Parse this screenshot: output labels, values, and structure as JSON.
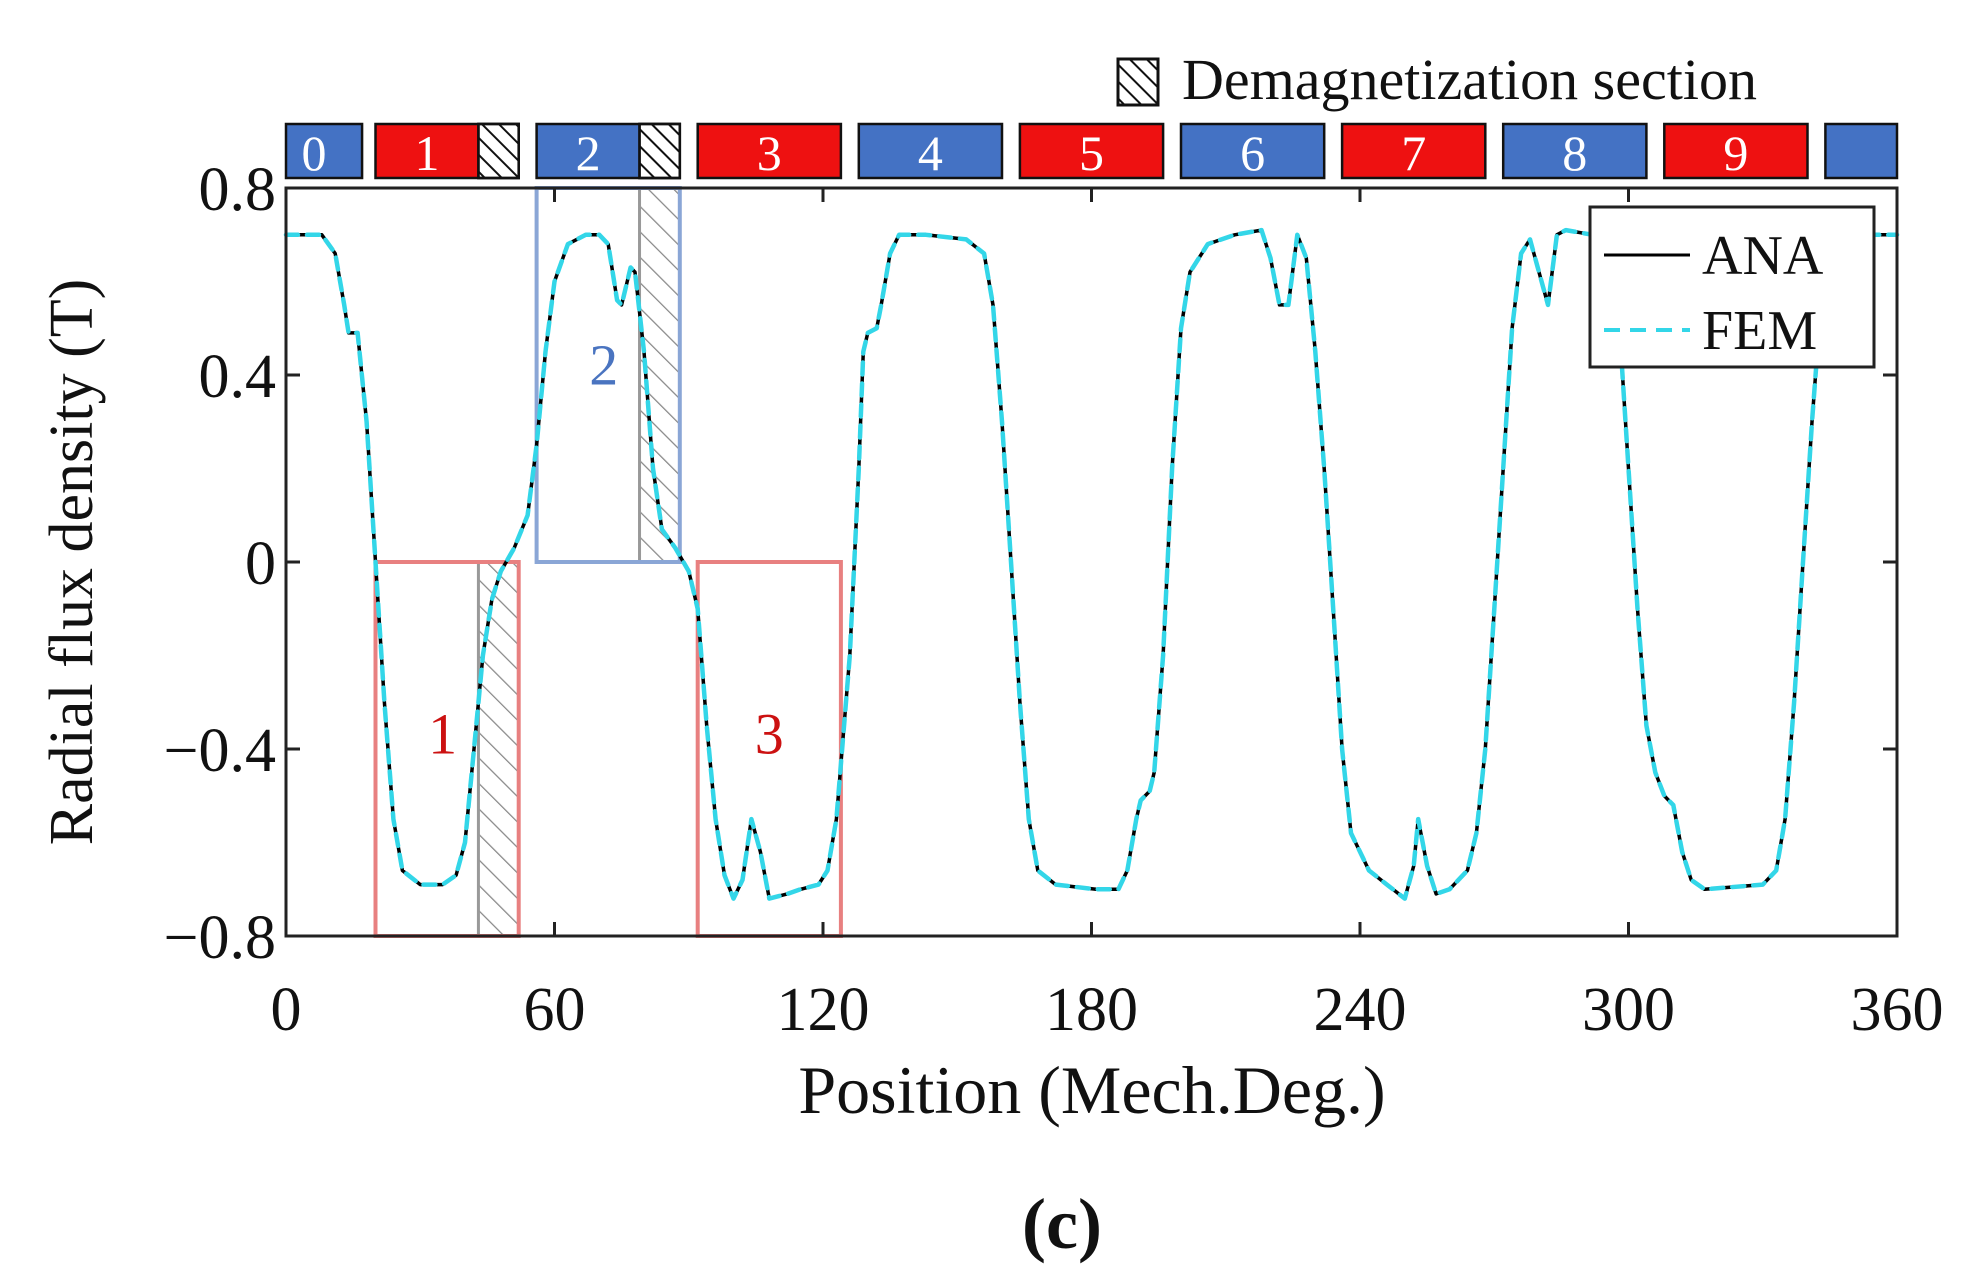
{
  "chart_data": {
    "type": "line",
    "title": "",
    "xlabel": "Position (Mech.Deg.)",
    "ylabel": "Radial flux density (T)",
    "xlim": [
      0,
      360
    ],
    "ylim": [
      -0.8,
      0.8
    ],
    "x_ticks": [
      0,
      60,
      120,
      180,
      240,
      300,
      360
    ],
    "x_tick_labels": [
      "0",
      "60",
      "120",
      "180",
      "240",
      "300",
      "360"
    ],
    "y_ticks": [
      0.8,
      0.4,
      0,
      -0.4,
      -0.8
    ],
    "y_tick_labels": [
      "0.8",
      "0.4",
      "0",
      "−0.4",
      "−0.8"
    ],
    "grid": false,
    "legend": {
      "placement": "top-right",
      "entries": [
        "ANA",
        "FEM"
      ]
    },
    "series": [
      {
        "name": "ANA",
        "color": "#000000",
        "style": "solid",
        "points": [
          [
            0,
            0.7
          ],
          [
            8,
            0.7
          ],
          [
            11,
            0.66
          ],
          [
            13,
            0.55
          ],
          [
            14,
            0.49
          ],
          [
            16,
            0.49
          ],
          [
            18,
            0.3
          ],
          [
            20,
            0.0
          ],
          [
            22,
            -0.3
          ],
          [
            24,
            -0.55
          ],
          [
            26,
            -0.66
          ],
          [
            30,
            -0.69
          ],
          [
            35,
            -0.69
          ],
          [
            38,
            -0.67
          ],
          [
            40,
            -0.6
          ],
          [
            42,
            -0.4
          ],
          [
            44,
            -0.2
          ],
          [
            46,
            -0.08
          ],
          [
            48,
            -0.02
          ],
          [
            51,
            0.03
          ],
          [
            54,
            0.1
          ],
          [
            56,
            0.25
          ],
          [
            58,
            0.45
          ],
          [
            60,
            0.6
          ],
          [
            63,
            0.68
          ],
          [
            67,
            0.7
          ],
          [
            70,
            0.7
          ],
          [
            72,
            0.68
          ],
          [
            74,
            0.56
          ],
          [
            75,
            0.55
          ],
          [
            77,
            0.63
          ],
          [
            78,
            0.62
          ],
          [
            80,
            0.45
          ],
          [
            82,
            0.2
          ],
          [
            84,
            0.07
          ],
          [
            87,
            0.03
          ],
          [
            90,
            -0.02
          ],
          [
            92,
            -0.1
          ],
          [
            94,
            -0.35
          ],
          [
            96,
            -0.55
          ],
          [
            98,
            -0.67
          ],
          [
            100,
            -0.72
          ],
          [
            102,
            -0.68
          ],
          [
            104,
            -0.55
          ],
          [
            106,
            -0.62
          ],
          [
            108,
            -0.72
          ],
          [
            112,
            -0.71
          ],
          [
            115,
            -0.7
          ],
          [
            119,
            -0.69
          ],
          [
            121,
            -0.66
          ],
          [
            123,
            -0.55
          ],
          [
            126,
            -0.2
          ],
          [
            128,
            0.2
          ],
          [
            129,
            0.45
          ],
          [
            130,
            0.49
          ],
          [
            132,
            0.5
          ],
          [
            133,
            0.55
          ],
          [
            135,
            0.66
          ],
          [
            137,
            0.7
          ],
          [
            143,
            0.7
          ],
          [
            152,
            0.69
          ],
          [
            156,
            0.66
          ],
          [
            158,
            0.55
          ],
          [
            160,
            0.3
          ],
          [
            162,
            0.0
          ],
          [
            164,
            -0.3
          ],
          [
            166,
            -0.55
          ],
          [
            168,
            -0.66
          ],
          [
            172,
            -0.69
          ],
          [
            181,
            -0.7
          ],
          [
            186,
            -0.7
          ],
          [
            188,
            -0.66
          ],
          [
            190,
            -0.55
          ],
          [
            191,
            -0.51
          ],
          [
            193,
            -0.49
          ],
          [
            194,
            -0.45
          ],
          [
            196,
            -0.2
          ],
          [
            198,
            0.2
          ],
          [
            200,
            0.5
          ],
          [
            202,
            0.62
          ],
          [
            206,
            0.68
          ],
          [
            212,
            0.7
          ],
          [
            218,
            0.71
          ],
          [
            220,
            0.65
          ],
          [
            222,
            0.55
          ],
          [
            224,
            0.55
          ],
          [
            226,
            0.7
          ],
          [
            228,
            0.65
          ],
          [
            230,
            0.45
          ],
          [
            232,
            0.2
          ],
          [
            234,
            -0.1
          ],
          [
            236,
            -0.4
          ],
          [
            238,
            -0.58
          ],
          [
            242,
            -0.66
          ],
          [
            246,
            -0.69
          ],
          [
            250,
            -0.72
          ],
          [
            252,
            -0.65
          ],
          [
            253,
            -0.55
          ],
          [
            255,
            -0.65
          ],
          [
            257,
            -0.71
          ],
          [
            260,
            -0.7
          ],
          [
            264,
            -0.66
          ],
          [
            266,
            -0.58
          ],
          [
            268,
            -0.4
          ],
          [
            270,
            -0.1
          ],
          [
            272,
            0.2
          ],
          [
            274,
            0.5
          ],
          [
            276,
            0.66
          ],
          [
            278,
            0.69
          ],
          [
            280,
            0.62
          ],
          [
            282,
            0.55
          ],
          [
            284,
            0.7
          ],
          [
            286,
            0.71
          ],
          [
            292,
            0.7
          ],
          [
            296,
            0.65
          ],
          [
            298,
            0.5
          ],
          [
            300,
            0.2
          ],
          [
            302,
            -0.1
          ],
          [
            304,
            -0.35
          ],
          [
            306,
            -0.45
          ],
          [
            308,
            -0.5
          ],
          [
            310,
            -0.52
          ],
          [
            312,
            -0.62
          ],
          [
            314,
            -0.68
          ],
          [
            317,
            -0.7
          ],
          [
            330,
            -0.69
          ],
          [
            333,
            -0.66
          ],
          [
            335,
            -0.55
          ],
          [
            337,
            -0.3
          ],
          [
            339,
            0.0
          ],
          [
            341,
            0.3
          ],
          [
            343,
            0.55
          ],
          [
            345,
            0.66
          ],
          [
            350,
            0.7
          ],
          [
            360,
            0.7
          ]
        ]
      },
      {
        "name": "FEM",
        "color": "#33d6e8",
        "style": "dashed",
        "points": [
          [
            0,
            0.7
          ],
          [
            8,
            0.7
          ],
          [
            11,
            0.66
          ],
          [
            13,
            0.55
          ],
          [
            14,
            0.49
          ],
          [
            16,
            0.49
          ],
          [
            18,
            0.3
          ],
          [
            20,
            0.0
          ],
          [
            22,
            -0.3
          ],
          [
            24,
            -0.55
          ],
          [
            26,
            -0.66
          ],
          [
            30,
            -0.69
          ],
          [
            35,
            -0.69
          ],
          [
            38,
            -0.67
          ],
          [
            40,
            -0.6
          ],
          [
            42,
            -0.4
          ],
          [
            44,
            -0.2
          ],
          [
            46,
            -0.08
          ],
          [
            48,
            -0.02
          ],
          [
            51,
            0.03
          ],
          [
            54,
            0.1
          ],
          [
            56,
            0.25
          ],
          [
            58,
            0.45
          ],
          [
            60,
            0.6
          ],
          [
            63,
            0.68
          ],
          [
            67,
            0.7
          ],
          [
            70,
            0.7
          ],
          [
            72,
            0.68
          ],
          [
            74,
            0.56
          ],
          [
            75,
            0.55
          ],
          [
            77,
            0.63
          ],
          [
            78,
            0.62
          ],
          [
            80,
            0.45
          ],
          [
            82,
            0.2
          ],
          [
            84,
            0.07
          ],
          [
            87,
            0.03
          ],
          [
            90,
            -0.02
          ],
          [
            92,
            -0.1
          ],
          [
            94,
            -0.35
          ],
          [
            96,
            -0.55
          ],
          [
            98,
            -0.67
          ],
          [
            100,
            -0.72
          ],
          [
            102,
            -0.68
          ],
          [
            104,
            -0.55
          ],
          [
            106,
            -0.62
          ],
          [
            108,
            -0.72
          ],
          [
            112,
            -0.71
          ],
          [
            115,
            -0.7
          ],
          [
            119,
            -0.69
          ],
          [
            121,
            -0.66
          ],
          [
            123,
            -0.55
          ],
          [
            126,
            -0.2
          ],
          [
            128,
            0.2
          ],
          [
            129,
            0.45
          ],
          [
            130,
            0.49
          ],
          [
            132,
            0.5
          ],
          [
            133,
            0.55
          ],
          [
            135,
            0.66
          ],
          [
            137,
            0.7
          ],
          [
            143,
            0.7
          ],
          [
            152,
            0.69
          ],
          [
            156,
            0.66
          ],
          [
            158,
            0.55
          ],
          [
            160,
            0.3
          ],
          [
            162,
            0.0
          ],
          [
            164,
            -0.3
          ],
          [
            166,
            -0.55
          ],
          [
            168,
            -0.66
          ],
          [
            172,
            -0.69
          ],
          [
            181,
            -0.7
          ],
          [
            186,
            -0.7
          ],
          [
            188,
            -0.66
          ],
          [
            190,
            -0.55
          ],
          [
            191,
            -0.51
          ],
          [
            193,
            -0.49
          ],
          [
            194,
            -0.45
          ],
          [
            196,
            -0.2
          ],
          [
            198,
            0.2
          ],
          [
            200,
            0.5
          ],
          [
            202,
            0.62
          ],
          [
            206,
            0.68
          ],
          [
            212,
            0.7
          ],
          [
            218,
            0.71
          ],
          [
            220,
            0.65
          ],
          [
            222,
            0.55
          ],
          [
            224,
            0.55
          ],
          [
            226,
            0.7
          ],
          [
            228,
            0.65
          ],
          [
            230,
            0.45
          ],
          [
            232,
            0.2
          ],
          [
            234,
            -0.1
          ],
          [
            236,
            -0.4
          ],
          [
            238,
            -0.58
          ],
          [
            242,
            -0.66
          ],
          [
            246,
            -0.69
          ],
          [
            250,
            -0.72
          ],
          [
            252,
            -0.65
          ],
          [
            253,
            -0.55
          ],
          [
            255,
            -0.65
          ],
          [
            257,
            -0.71
          ],
          [
            260,
            -0.7
          ],
          [
            264,
            -0.66
          ],
          [
            266,
            -0.58
          ],
          [
            268,
            -0.4
          ],
          [
            270,
            -0.1
          ],
          [
            272,
            0.2
          ],
          [
            274,
            0.5
          ],
          [
            276,
            0.66
          ],
          [
            278,
            0.69
          ],
          [
            280,
            0.62
          ],
          [
            282,
            0.55
          ],
          [
            284,
            0.7
          ],
          [
            286,
            0.71
          ],
          [
            292,
            0.7
          ],
          [
            296,
            0.65
          ],
          [
            298,
            0.5
          ],
          [
            300,
            0.2
          ],
          [
            302,
            -0.1
          ],
          [
            304,
            -0.35
          ],
          [
            306,
            -0.45
          ],
          [
            308,
            -0.5
          ],
          [
            310,
            -0.52
          ],
          [
            312,
            -0.62
          ],
          [
            314,
            -0.68
          ],
          [
            317,
            -0.7
          ],
          [
            330,
            -0.69
          ],
          [
            333,
            -0.66
          ],
          [
            335,
            -0.55
          ],
          [
            337,
            -0.3
          ],
          [
            339,
            0.0
          ],
          [
            341,
            0.3
          ],
          [
            343,
            0.55
          ],
          [
            345,
            0.66
          ],
          [
            350,
            0.7
          ],
          [
            360,
            0.7
          ]
        ]
      }
    ],
    "pole_strip": {
      "legend_label": "Demagnetization section",
      "poles": [
        {
          "label": "0",
          "start": 0,
          "end": 17,
          "color": "#4472c4",
          "demag": null
        },
        {
          "label": "1",
          "start": 20,
          "end": 52,
          "color": "#ee1111",
          "demag": [
            43,
            52
          ]
        },
        {
          "label": "2",
          "start": 56,
          "end": 88,
          "color": "#4472c4",
          "demag": [
            79,
            88
          ]
        },
        {
          "label": "3",
          "start": 92,
          "end": 124,
          "color": "#ee1111",
          "demag": null
        },
        {
          "label": "4",
          "start": 128,
          "end": 160,
          "color": "#4472c4",
          "demag": null
        },
        {
          "label": "5",
          "start": 164,
          "end": 196,
          "color": "#ee1111",
          "demag": null
        },
        {
          "label": "6",
          "start": 200,
          "end": 232,
          "color": "#4472c4",
          "demag": null
        },
        {
          "label": "7",
          "start": 236,
          "end": 268,
          "color": "#ee1111",
          "demag": null
        },
        {
          "label": "8",
          "start": 272,
          "end": 304,
          "color": "#4472c4",
          "demag": null
        },
        {
          "label": "9",
          "start": 308,
          "end": 340,
          "color": "#ee1111",
          "demag": null
        },
        {
          "label": "",
          "start": 344,
          "end": 360,
          "color": "#4472c4",
          "demag": null
        }
      ]
    },
    "annotations": [
      {
        "label": "1",
        "x_range": [
          20,
          52
        ],
        "y_range": [
          -0.8,
          0
        ],
        "color": "#e88080",
        "label_color": "#cc1111",
        "label_pos": [
          35,
          -0.41
        ],
        "hatch": [
          43,
          52
        ]
      },
      {
        "label": "2",
        "x_range": [
          56,
          88
        ],
        "y_range": [
          0,
          0.8
        ],
        "color": "#8aa6d6",
        "label_color": "#4a74c0",
        "label_pos": [
          71,
          0.38
        ],
        "hatch": [
          79,
          88
        ]
      },
      {
        "label": "3",
        "x_range": [
          92,
          124
        ],
        "y_range": [
          -0.8,
          0
        ],
        "color": "#e88080",
        "label_color": "#cc1111",
        "label_pos": [
          108,
          -0.41
        ],
        "hatch": null
      }
    ]
  },
  "caption": "(c)"
}
